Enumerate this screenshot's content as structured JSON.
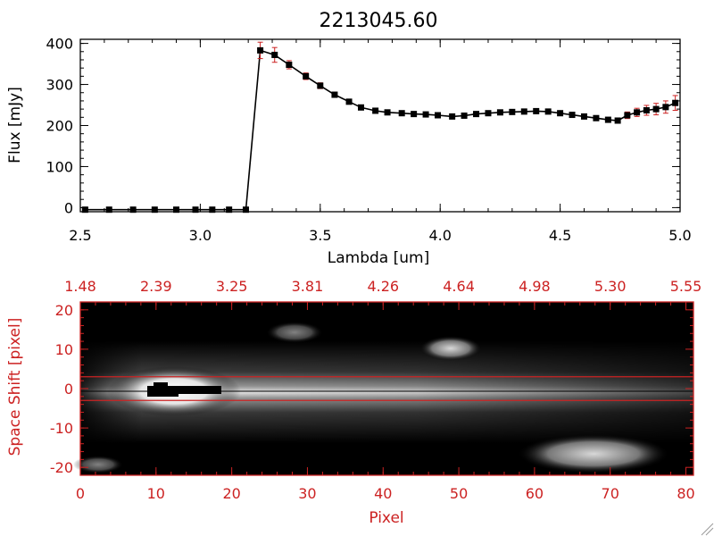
{
  "colors": {
    "axis_black": "#000000",
    "axis_red": "#cc2222",
    "errorbar": "#cc2222",
    "marker": "#000000"
  },
  "chart_data": [
    {
      "type": "line",
      "title": "2213045.60",
      "xlabel": "Lambda [um]",
      "ylabel": "Flux [mJy]",
      "xlim": [
        2.5,
        5.0
      ],
      "ylim": [
        -10,
        410
      ],
      "x_ticks": [
        "2.5",
        "3.0",
        "3.5",
        "4.0",
        "4.5",
        "5.0"
      ],
      "y_ticks": [
        "0",
        "100",
        "200",
        "300",
        "400"
      ],
      "grid": false,
      "series": [
        {
          "x": [
            2.52,
            2.62,
            2.72,
            2.81,
            2.9,
            2.98,
            3.05,
            3.12,
            3.19,
            3.25,
            3.31,
            3.37,
            3.44,
            3.5,
            3.56,
            3.62,
            3.67,
            3.73,
            3.78,
            3.84,
            3.89,
            3.94,
            3.99,
            4.05,
            4.1,
            4.15,
            4.2,
            4.25,
            4.3,
            4.35,
            4.4,
            4.45,
            4.5,
            4.55,
            4.6,
            4.65,
            4.7,
            4.74,
            4.78,
            4.82,
            4.86,
            4.9,
            4.94,
            4.98
          ],
          "y": [
            -5,
            -5,
            -5,
            -5,
            -5,
            -5,
            -5,
            -5,
            -5,
            383,
            372,
            348,
            320,
            297,
            275,
            258,
            244,
            236,
            232,
            230,
            228,
            227,
            225,
            222,
            224,
            228,
            230,
            232,
            233,
            234,
            235,
            234,
            230,
            226,
            222,
            218,
            214,
            212,
            225,
            232,
            237,
            240,
            245,
            255
          ],
          "yerr": [
            3,
            3,
            3,
            3,
            3,
            3,
            3,
            3,
            3,
            20,
            18,
            10,
            8,
            7,
            6,
            5,
            5,
            4,
            4,
            4,
            4,
            4,
            4,
            4,
            4,
            4,
            4,
            4,
            4,
            4,
            4,
            4,
            4,
            4,
            4,
            4,
            5,
            6,
            8,
            10,
            12,
            14,
            15,
            18
          ]
        }
      ]
    },
    {
      "type": "heatmap",
      "xlabel": "Pixel",
      "ylabel": "Space Shift [pixel]",
      "xlim": [
        0,
        81
      ],
      "ylim": [
        -22,
        22
      ],
      "x_ticks": [
        "0",
        "10",
        "20",
        "30",
        "40",
        "50",
        "60",
        "70",
        "80"
      ],
      "y_ticks": [
        "-20",
        "-10",
        "0",
        "10",
        "20"
      ],
      "top_x_ticks": [
        "1.48",
        "2.39",
        "3.25",
        "3.81",
        "4.26",
        "4.64",
        "4.98",
        "5.30",
        "5.55"
      ],
      "extraction_window_lines": [
        3,
        -3
      ],
      "trace_center_y": 0,
      "colormap": "grayscale"
    }
  ]
}
